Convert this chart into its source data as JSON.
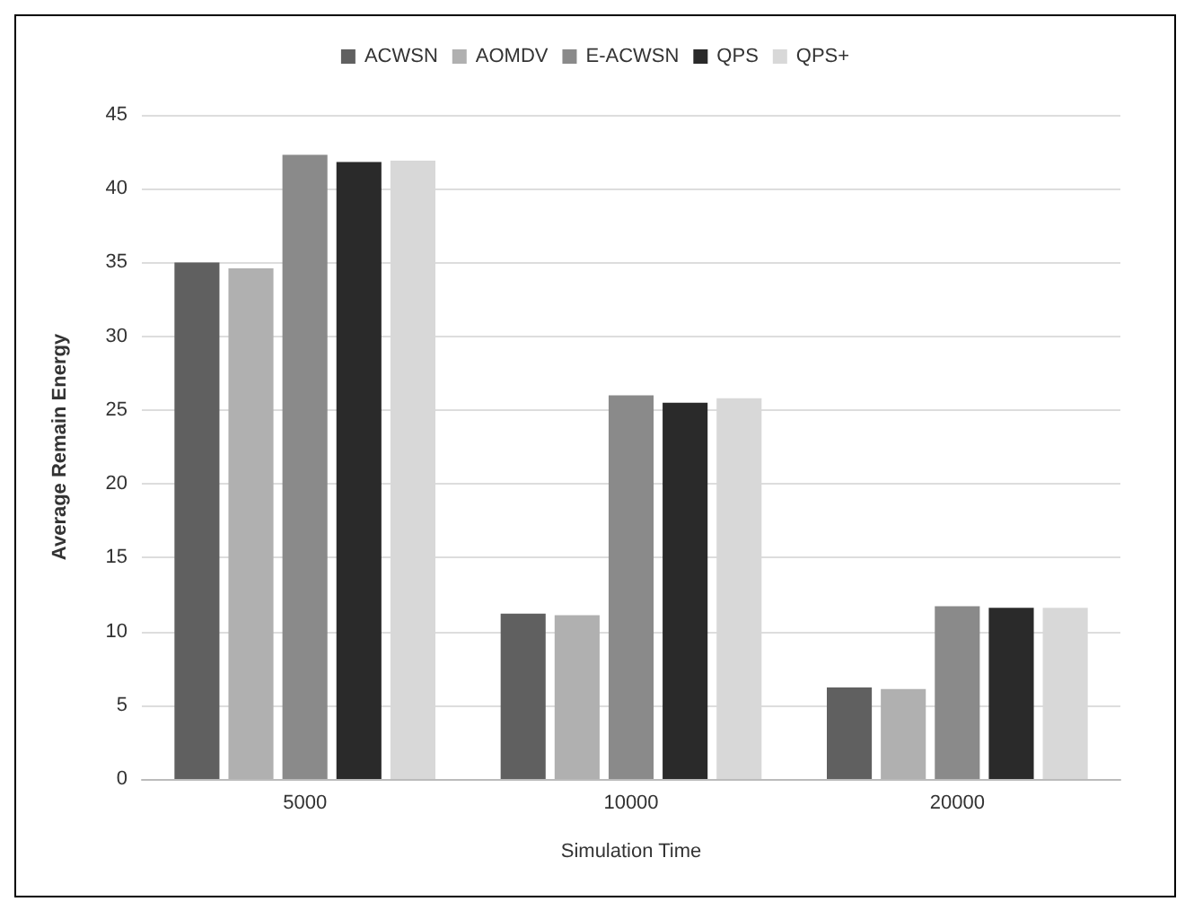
{
  "chart_data": {
    "type": "bar",
    "xlabel": "Simulation Time",
    "ylabel": "Average Remain Energy",
    "categories": [
      "5000",
      "10000",
      "20000"
    ],
    "series": [
      {
        "name": "ACWSN",
        "color": "#606060",
        "values": [
          35,
          11.2,
          6.2
        ]
      },
      {
        "name": "AOMDV",
        "color": "#b0b0b0",
        "values": [
          34.6,
          11.1,
          6.1
        ]
      },
      {
        "name": "E-ACWSN",
        "color": "#8a8a8a",
        "values": [
          42.3,
          26,
          11.7
        ]
      },
      {
        "name": "QPS",
        "color": "#2a2a2a",
        "values": [
          41.8,
          25.5,
          11.6
        ]
      },
      {
        "name": "QPS+",
        "color": "#d8d8d8",
        "values": [
          41.9,
          25.8,
          11.6
        ]
      }
    ],
    "ylim": [
      0,
      45
    ],
    "yticks": [
      0,
      5,
      10,
      15,
      20,
      25,
      30,
      35,
      40,
      45
    ],
    "grid": "y",
    "legend": "top"
  }
}
